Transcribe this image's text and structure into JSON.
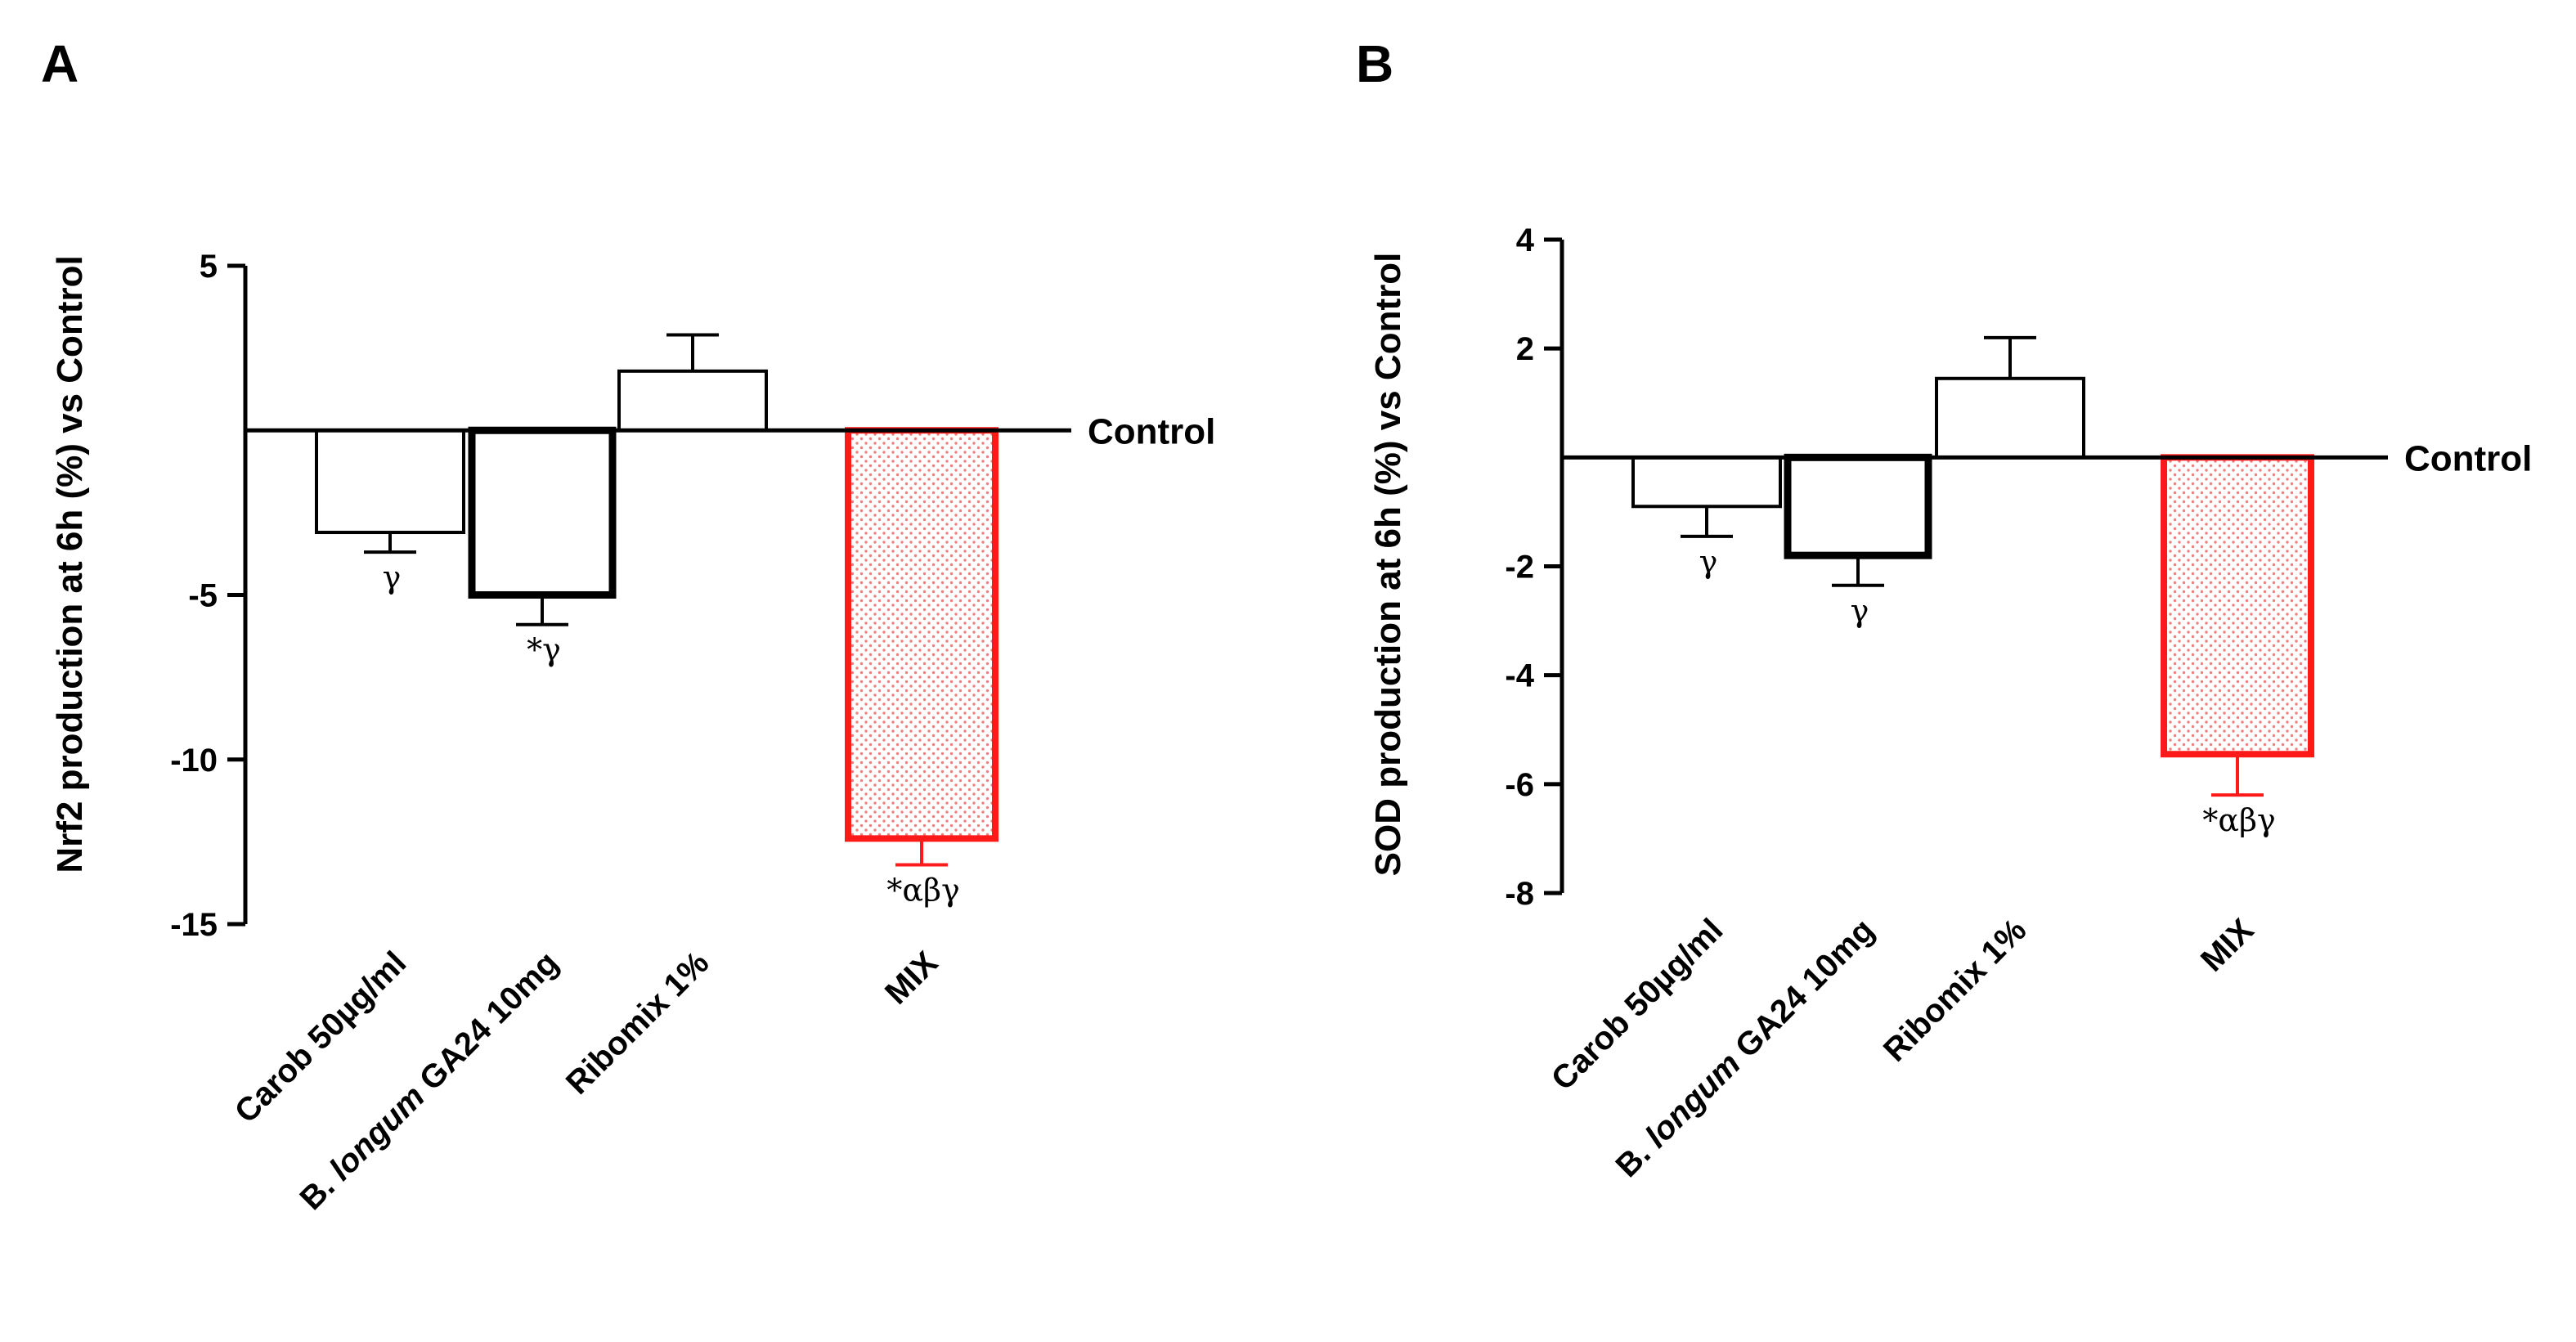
{
  "chart_data": [
    {
      "type": "bar",
      "panel": "A",
      "ylabel": "Nrf2 production at 6h (%) vs Control",
      "reference_label": "Control",
      "ylim": [
        -15,
        5
      ],
      "yticks": [
        {
          "value": 5,
          "label": "5"
        },
        {
          "value": -5,
          "label": "-5"
        },
        {
          "value": -10,
          "label": "-10"
        },
        {
          "value": -15,
          "label": "-15"
        }
      ],
      "categories": [
        {
          "parts": [
            {
              "t": "Carob 50µg/ml",
              "i": false
            }
          ]
        },
        {
          "parts": [
            {
              "t": "B. ",
              "i": false
            },
            {
              "t": "longum",
              "i": true
            },
            {
              "t": " GA24 10mg",
              "i": false
            }
          ]
        },
        {
          "parts": [
            {
              "t": "Ribomix 1%",
              "i": false
            }
          ]
        },
        {
          "parts": [
            {
              "t": "MIX",
              "i": false
            }
          ]
        }
      ],
      "values": [
        -3.1,
        -5.0,
        1.8,
        -12.4
      ],
      "errors": [
        0.6,
        0.9,
        1.1,
        0.8
      ],
      "significance": [
        "γ",
        "*γ",
        "",
        "*αβγ"
      ],
      "styles": [
        "thin",
        "thick",
        "thin",
        "red-dotted"
      ]
    },
    {
      "type": "bar",
      "panel": "B",
      "ylabel": "SOD production at 6h (%) vs Control",
      "reference_label": "Control",
      "ylim": [
        -8,
        4
      ],
      "yticks": [
        {
          "value": 4,
          "label": "4"
        },
        {
          "value": 2,
          "label": "2"
        },
        {
          "value": -2,
          "label": "-2"
        },
        {
          "value": -4,
          "label": "-4"
        },
        {
          "value": -6,
          "label": "-6"
        },
        {
          "value": -8,
          "label": "-8"
        }
      ],
      "categories": [
        {
          "parts": [
            {
              "t": "Carob 50µg/ml",
              "i": false
            }
          ]
        },
        {
          "parts": [
            {
              "t": "B. ",
              "i": false
            },
            {
              "t": "longum",
              "i": true
            },
            {
              "t": " GA24 10mg",
              "i": false
            }
          ]
        },
        {
          "parts": [
            {
              "t": "Ribomix 1%",
              "i": false
            }
          ]
        },
        {
          "parts": [
            {
              "t": "MIX",
              "i": false
            }
          ]
        }
      ],
      "values": [
        -0.9,
        -1.8,
        1.45,
        -5.45
      ],
      "errors": [
        0.55,
        0.55,
        0.75,
        0.75
      ],
      "significance": [
        "γ",
        "γ",
        "",
        "*αβγ"
      ],
      "styles": [
        "thin",
        "thick",
        "thin",
        "red-dotted"
      ]
    }
  ],
  "colors": {
    "axis": "#000000",
    "highlight": "#ff1a1a",
    "dot_fill": "#f08080"
  }
}
